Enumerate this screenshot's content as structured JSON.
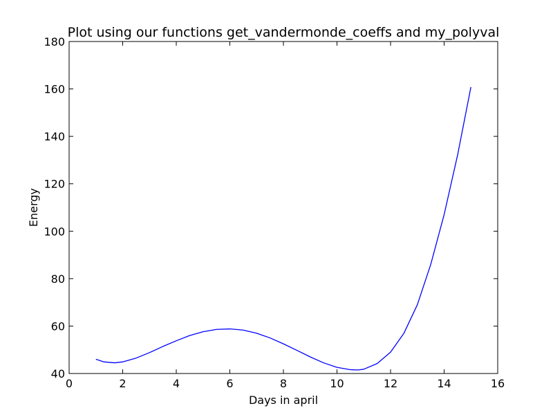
{
  "chart_data": {
    "type": "line",
    "title": "Plot using our functions get_vandermonde_coeffs and my_polyval",
    "xlabel": "Days in april",
    "ylabel": "Energy",
    "xlim": [
      0,
      16
    ],
    "ylim": [
      40,
      180
    ],
    "x_ticks": [
      "0",
      "2",
      "4",
      "6",
      "8",
      "10",
      "12",
      "14",
      "16"
    ],
    "y_ticks": [
      "40",
      "60",
      "80",
      "100",
      "120",
      "140",
      "160",
      "180"
    ],
    "grid": false,
    "legend": "none",
    "series": [
      {
        "color": "#0000ff",
        "x": [
          1,
          1.3,
          1.7,
          2,
          2.5,
          3,
          3.5,
          4,
          4.5,
          5,
          5.5,
          6,
          6.5,
          7,
          7.5,
          8,
          8.5,
          9,
          9.5,
          10,
          10.5,
          10.8,
          11,
          11.5,
          12,
          12.5,
          13,
          13.5,
          14,
          14.5,
          15
        ],
        "y": [
          46.0,
          44.9,
          44.5,
          44.9,
          46.5,
          48.8,
          51.4,
          53.8,
          56.0,
          57.6,
          58.6,
          58.8,
          58.3,
          57.0,
          55.0,
          52.5,
          49.8,
          47.0,
          44.5,
          42.6,
          41.6,
          41.5,
          41.8,
          44.2,
          49.0,
          57.0,
          69.0,
          86.0,
          107.0,
          132.0,
          160.8
        ]
      }
    ]
  }
}
